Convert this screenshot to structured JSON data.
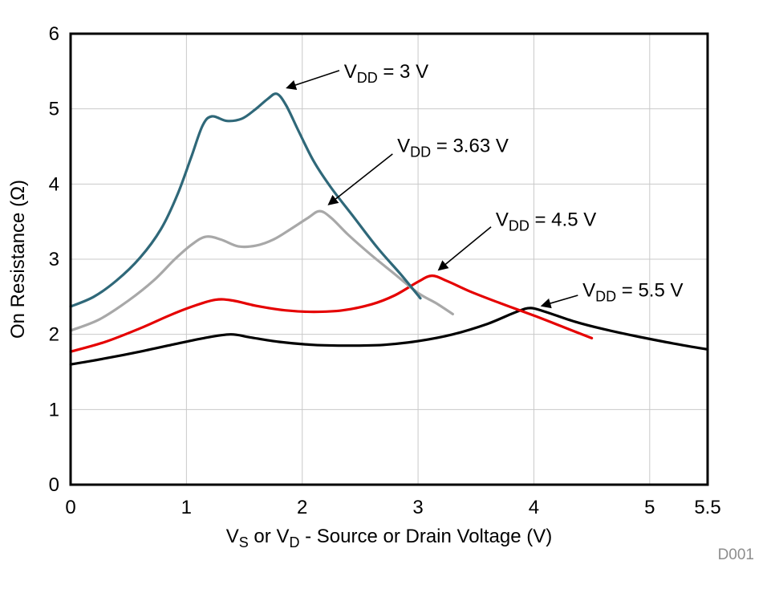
{
  "page": {
    "background": "#ffffff",
    "watermark": "D001"
  },
  "chart_data": {
    "type": "line",
    "title": "",
    "xlabel": {
      "text": "VS or VD - Source or Drain Voltage (V)",
      "parts": [
        {
          "t": "V"
        },
        {
          "sub": "S"
        },
        {
          "t": " or V"
        },
        {
          "sub": "D"
        },
        {
          "t": " - Source or Drain Voltage (V)"
        }
      ]
    },
    "ylabel": {
      "text": "On Resistance (Ω)"
    },
    "xlim": [
      0,
      5.5
    ],
    "ylim": [
      0,
      6
    ],
    "xticks": [
      0,
      1,
      2,
      3,
      4,
      5,
      5.5
    ],
    "yticks": [
      0,
      1,
      2,
      3,
      4,
      5,
      6
    ],
    "grid": true,
    "legend": "none",
    "colors": {
      "grid": "#c9c9c9",
      "axis": "#000000",
      "annotation": "#000000",
      "watermark": "#8e8e8e"
    },
    "series": [
      {
        "id": "vdd-3v",
        "name": "VDD = 3 V",
        "color": "#2f6879",
        "points": [
          [
            0,
            2.37
          ],
          [
            0.2,
            2.5
          ],
          [
            0.4,
            2.72
          ],
          [
            0.6,
            3.02
          ],
          [
            0.78,
            3.4
          ],
          [
            0.92,
            3.85
          ],
          [
            1.04,
            4.35
          ],
          [
            1.14,
            4.78
          ],
          [
            1.22,
            4.9
          ],
          [
            1.35,
            4.84
          ],
          [
            1.48,
            4.87
          ],
          [
            1.6,
            5.0
          ],
          [
            1.7,
            5.13
          ],
          [
            1.78,
            5.2
          ],
          [
            1.86,
            5.05
          ],
          [
            1.97,
            4.7
          ],
          [
            2.1,
            4.3
          ],
          [
            2.25,
            3.95
          ],
          [
            2.45,
            3.55
          ],
          [
            2.65,
            3.15
          ],
          [
            2.85,
            2.8
          ],
          [
            3.02,
            2.48
          ]
        ]
      },
      {
        "id": "vdd-3p63v",
        "name": "VDD = 3.63 V",
        "color": "#a8a8a8",
        "points": [
          [
            0,
            2.05
          ],
          [
            0.25,
            2.2
          ],
          [
            0.5,
            2.45
          ],
          [
            0.72,
            2.72
          ],
          [
            0.9,
            3.0
          ],
          [
            1.05,
            3.2
          ],
          [
            1.17,
            3.3
          ],
          [
            1.3,
            3.26
          ],
          [
            1.45,
            3.17
          ],
          [
            1.6,
            3.18
          ],
          [
            1.75,
            3.26
          ],
          [
            1.9,
            3.4
          ],
          [
            2.05,
            3.55
          ],
          [
            2.15,
            3.64
          ],
          [
            2.25,
            3.55
          ],
          [
            2.4,
            3.32
          ],
          [
            2.6,
            3.05
          ],
          [
            2.8,
            2.8
          ],
          [
            3.0,
            2.55
          ],
          [
            3.15,
            2.42
          ],
          [
            3.3,
            2.27
          ]
        ]
      },
      {
        "id": "vdd-4p5v",
        "name": "VDD = 4.5 V",
        "color": "#e50000",
        "points": [
          [
            0,
            1.77
          ],
          [
            0.3,
            1.9
          ],
          [
            0.6,
            2.08
          ],
          [
            0.85,
            2.25
          ],
          [
            1.05,
            2.37
          ],
          [
            1.25,
            2.46
          ],
          [
            1.4,
            2.45
          ],
          [
            1.6,
            2.38
          ],
          [
            1.85,
            2.32
          ],
          [
            2.1,
            2.3
          ],
          [
            2.35,
            2.32
          ],
          [
            2.6,
            2.4
          ],
          [
            2.8,
            2.52
          ],
          [
            3.0,
            2.7
          ],
          [
            3.12,
            2.78
          ],
          [
            3.25,
            2.71
          ],
          [
            3.45,
            2.57
          ],
          [
            3.7,
            2.42
          ],
          [
            4.0,
            2.25
          ],
          [
            4.25,
            2.1
          ],
          [
            4.5,
            1.95
          ]
        ]
      },
      {
        "id": "vdd-5p5v",
        "name": "VDD = 5.5 V",
        "color": "#000000",
        "points": [
          [
            0,
            1.6
          ],
          [
            0.3,
            1.68
          ],
          [
            0.6,
            1.77
          ],
          [
            0.9,
            1.87
          ],
          [
            1.15,
            1.95
          ],
          [
            1.38,
            2.0
          ],
          [
            1.55,
            1.96
          ],
          [
            1.8,
            1.9
          ],
          [
            2.1,
            1.86
          ],
          [
            2.4,
            1.85
          ],
          [
            2.7,
            1.86
          ],
          [
            3.0,
            1.91
          ],
          [
            3.3,
            2.0
          ],
          [
            3.6,
            2.14
          ],
          [
            3.85,
            2.3
          ],
          [
            3.97,
            2.35
          ],
          [
            4.1,
            2.3
          ],
          [
            4.35,
            2.17
          ],
          [
            4.6,
            2.07
          ],
          [
            4.9,
            1.97
          ],
          [
            5.2,
            1.88
          ],
          [
            5.5,
            1.8
          ]
        ]
      }
    ],
    "annotations": [
      {
        "id": "vdd-3v",
        "text": "VDD = 3 V",
        "parts": [
          {
            "t": "V"
          },
          {
            "sub": "DD"
          },
          {
            "t": " = 3 V"
          }
        ],
        "text_xy": [
          2.36,
          5.51
        ],
        "tail_xy": [
          2.32,
          5.51
        ],
        "tip_xy": [
          1.87,
          5.28
        ]
      },
      {
        "id": "vdd-3p63v",
        "text": "VDD = 3.63 V",
        "parts": [
          {
            "t": "V"
          },
          {
            "sub": "DD"
          },
          {
            "t": " = 3.63 V"
          }
        ],
        "text_xy": [
          2.82,
          4.52
        ],
        "tail_xy": [
          2.78,
          4.4
        ],
        "tip_xy": [
          2.23,
          3.73
        ]
      },
      {
        "id": "vdd-4p5v",
        "text": "VDD = 4.5 V",
        "parts": [
          {
            "t": "V"
          },
          {
            "sub": "DD"
          },
          {
            "t": " = 4.5 V"
          }
        ],
        "text_xy": [
          3.67,
          3.54
        ],
        "tail_xy": [
          3.63,
          3.43
        ],
        "tip_xy": [
          3.18,
          2.86
        ]
      },
      {
        "id": "vdd-5p5v",
        "text": "VDD = 5.5 V",
        "parts": [
          {
            "t": "V"
          },
          {
            "sub": "DD"
          },
          {
            "t": " = 5.5 V"
          }
        ],
        "text_xy": [
          4.42,
          2.6
        ],
        "tail_xy": [
          4.38,
          2.52
        ],
        "tip_xy": [
          4.07,
          2.38
        ]
      }
    ]
  }
}
